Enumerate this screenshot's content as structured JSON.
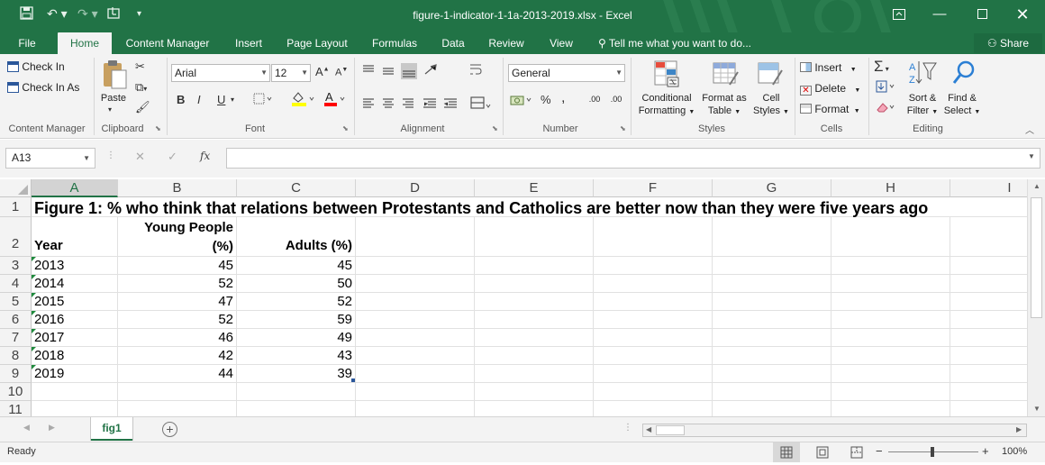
{
  "window": {
    "title": "figure-1-indicator-1-1a-2013-2019.xlsx - Excel"
  },
  "ribbon_tabs": [
    {
      "label": "File"
    },
    {
      "label": "Home"
    },
    {
      "label": "Content Manager"
    },
    {
      "label": "Insert"
    },
    {
      "label": "Page Layout"
    },
    {
      "label": "Formulas"
    },
    {
      "label": "Data"
    },
    {
      "label": "Review"
    },
    {
      "label": "View"
    }
  ],
  "tell_me": "Tell me what you want to do...",
  "share_label": "Share",
  "ribbon": {
    "content_manager": {
      "check_in": "Check In",
      "check_in_as": "Check In As",
      "group": "Content Manager"
    },
    "clipboard": {
      "paste": "Paste",
      "group": "Clipboard"
    },
    "font": {
      "name": "Arial",
      "size": "12",
      "bold": "B",
      "italic": "I",
      "underline": "U",
      "grow": "A",
      "shrink": "A",
      "color": "A",
      "group": "Font"
    },
    "alignment": {
      "group": "Alignment"
    },
    "number": {
      "format": "General",
      "percent": "%",
      "comma": ",",
      "inc_decimal": ".00",
      "dec_decimal": ".00",
      "group": "Number"
    },
    "styles": {
      "conditional_1": "Conditional",
      "conditional_2": "Formatting",
      "format_as_1": "Format as",
      "format_as_2": "Table",
      "cell_1": "Cell",
      "cell_2": "Styles",
      "group": "Styles"
    },
    "cells": {
      "insert": "Insert",
      "delete": "Delete",
      "format": "Format",
      "group": "Cells"
    },
    "editing": {
      "sort_1": "Sort &",
      "sort_2": "Filter",
      "find_1": "Find &",
      "find_2": "Select",
      "sum": "Σ",
      "group": "Editing"
    }
  },
  "name_box": "A13",
  "formula": "",
  "columns": [
    "A",
    "B",
    "C",
    "D",
    "E",
    "F",
    "G",
    "H",
    "I"
  ],
  "selected_column": "A",
  "rows": [
    "1",
    "2",
    "3",
    "4",
    "5",
    "6",
    "7",
    "8",
    "9",
    "10",
    "11"
  ],
  "sheet": {
    "title": "Figure 1: % who think that relations between Protestants and Catholics are better now than they were five years ago",
    "header_year": "Year",
    "header_young_1": "Young People",
    "header_young_2": "(%)",
    "header_adults": "Adults (%)",
    "data": [
      {
        "year": "2013",
        "young": "45",
        "adults": "45"
      },
      {
        "year": "2014",
        "young": "52",
        "adults": "50"
      },
      {
        "year": "2015",
        "young": "47",
        "adults": "52"
      },
      {
        "year": "2016",
        "young": "52",
        "adults": "59"
      },
      {
        "year": "2017",
        "young": "46",
        "adults": "49"
      },
      {
        "year": "2018",
        "young": "42",
        "adults": "43"
      },
      {
        "year": "2019",
        "young": "44",
        "adults": "39"
      }
    ]
  },
  "sheet_tabs": [
    {
      "label": "fig1"
    }
  ],
  "status": {
    "text": "Ready",
    "zoom": "100%"
  }
}
